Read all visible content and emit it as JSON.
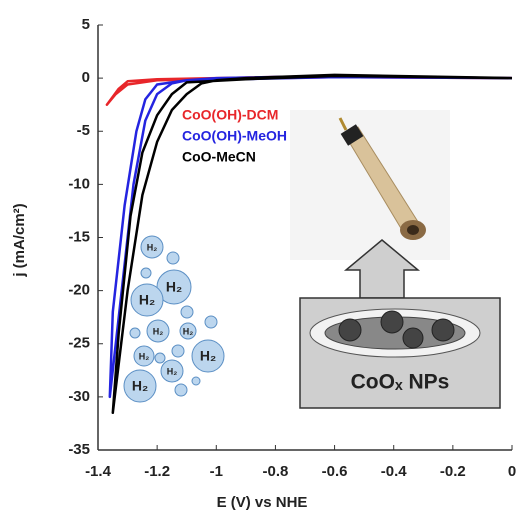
{
  "chart_data": {
    "type": "line",
    "xlabel": "E (V) vs NHE",
    "ylabel": "j (mA/cm²)",
    "xlim": [
      -1.4,
      0
    ],
    "xticks": [
      -1.4,
      -1.2,
      -1,
      -0.8,
      -0.6,
      -0.4,
      -0.2,
      0
    ],
    "ylim": [
      -35,
      5
    ],
    "yticks": [
      5,
      0,
      -5,
      -10,
      -15,
      -20,
      -25,
      -30,
      -35
    ],
    "series": [
      {
        "name": "CoO(OH)-DCM",
        "color": "#e8262a",
        "x": [
          0,
          -0.6,
          -1.0,
          -1.2,
          -1.3,
          -1.33,
          -1.37,
          -1.34,
          -1.3,
          -1.2,
          -1.0,
          -0.6,
          0
        ],
        "values": [
          0,
          0.2,
          0,
          -0.1,
          -0.3,
          -1.0,
          -2.5,
          -1.5,
          -0.6,
          -0.2,
          -0.1,
          0.1,
          0
        ]
      },
      {
        "name": "CoO(OH)-MeOH",
        "color": "#2424e0",
        "x": [
          0,
          -0.6,
          -1.0,
          -1.1,
          -1.15,
          -1.2,
          -1.24,
          -1.28,
          -1.32,
          -1.36,
          -1.35,
          -1.31,
          -1.27,
          -1.24,
          -1.2,
          -1.1,
          -0.6,
          0
        ],
        "values": [
          0,
          0.2,
          0,
          -0.2,
          -0.5,
          -1.5,
          -4,
          -10,
          -20,
          -30,
          -22,
          -12,
          -5,
          -2,
          -0.6,
          -0.2,
          0.1,
          0
        ]
      },
      {
        "name": "CoO-MeCN",
        "color": "#000000",
        "x": [
          0,
          -0.6,
          -0.9,
          -1.0,
          -1.05,
          -1.1,
          -1.15,
          -1.2,
          -1.25,
          -1.3,
          -1.35,
          -1.33,
          -1.29,
          -1.25,
          -1.2,
          -1.15,
          -1.1,
          -0.9,
          -0.6,
          0
        ],
        "values": [
          0,
          0.3,
          0,
          -0.2,
          -0.5,
          -1.5,
          -3,
          -6,
          -11,
          -20,
          -31.5,
          -24,
          -13,
          -7,
          -3.5,
          -1.5,
          -0.4,
          -0.1,
          0.2,
          0
        ]
      }
    ]
  },
  "illustration": {
    "bubble_labels": [
      "H₂",
      "H₂",
      "H₂",
      "H₂",
      "H₂",
      "H₂",
      "H₂",
      "H₂",
      "H₂"
    ],
    "box_label": "CoOₓ NPs"
  }
}
